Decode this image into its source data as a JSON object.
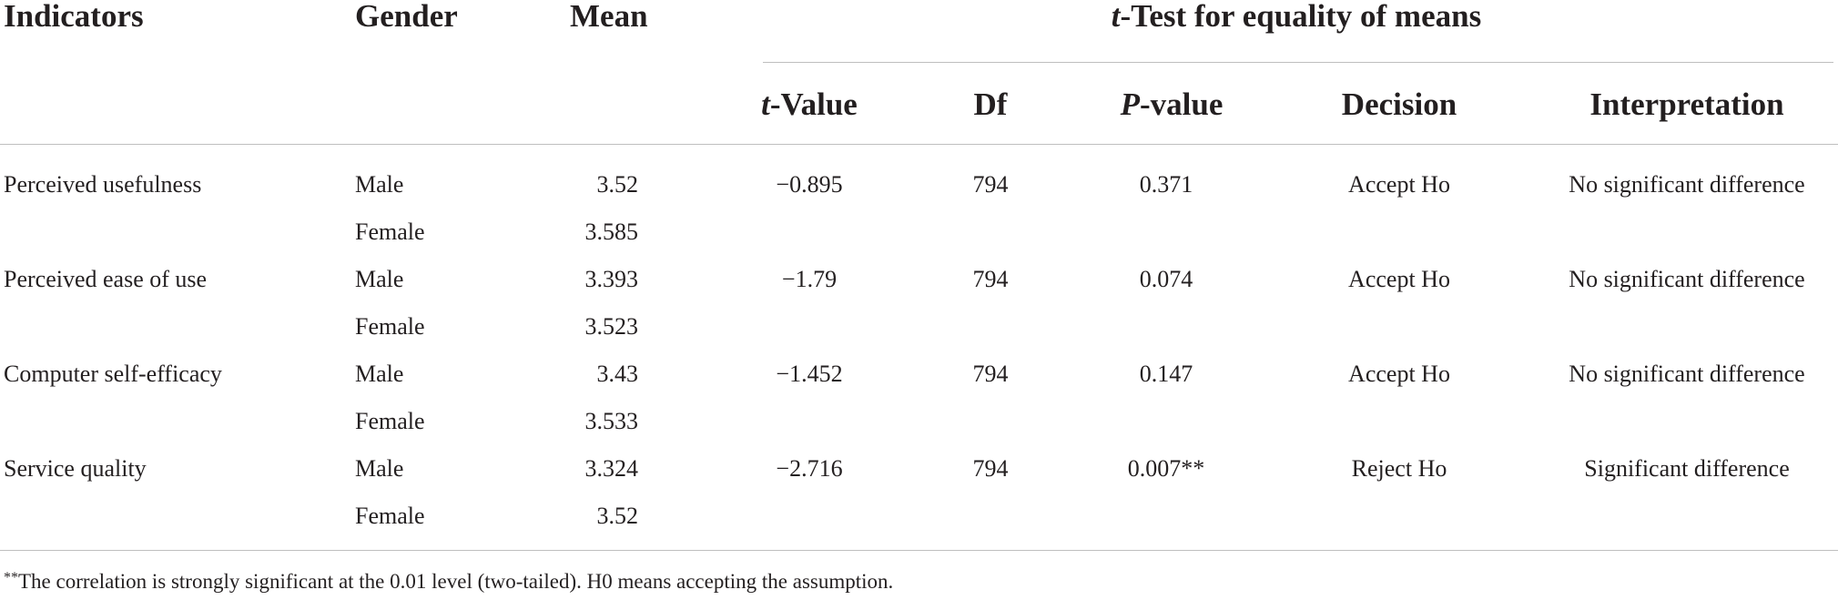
{
  "table": {
    "headers": {
      "indicators": "Indicators",
      "gender": "Gender",
      "mean": "Mean",
      "group_italic": "t",
      "group_rest": "-Test for equality of means",
      "t_value_italic": "t",
      "t_value_rest": "-Value",
      "df": "Df",
      "p_value_italic": "P",
      "p_value_rest": "-value",
      "decision": "Decision",
      "interpretation": "Interpretation"
    },
    "rows": [
      {
        "indicator": "Perceived usefulness",
        "male": "Male",
        "male_mean": "3.52",
        "female": "Female",
        "female_mean": "3.585",
        "t_value": "−0.895",
        "df": "794",
        "p_value": "0.371",
        "decision": "Accept Ho",
        "interpretation": "No significant difference"
      },
      {
        "indicator": "Perceived ease of use",
        "male": "Male",
        "male_mean": "3.393",
        "female": "Female",
        "female_mean": "3.523",
        "t_value": "−1.79",
        "df": "794",
        "p_value": "0.074",
        "decision": "Accept Ho",
        "interpretation": "No significant difference"
      },
      {
        "indicator": "Computer self-efficacy",
        "male": "Male",
        "male_mean": "3.43",
        "female": "Female",
        "female_mean": "3.533",
        "t_value": "−1.452",
        "df": "794",
        "p_value": "0.147",
        "decision": "Accept Ho",
        "interpretation": "No significant difference"
      },
      {
        "indicator": "Service quality",
        "male": "Male",
        "male_mean": "3.324",
        "female": "Female",
        "female_mean": "3.52",
        "t_value": "−2.716",
        "df": "794",
        "p_value": "0.007**",
        "decision": "Reject Ho",
        "interpretation": "Significant difference"
      }
    ],
    "footnote_marker": "**",
    "footnote": "The correlation is strongly significant at the 0.01 level (two-tailed). H0 means accepting the assumption."
  }
}
